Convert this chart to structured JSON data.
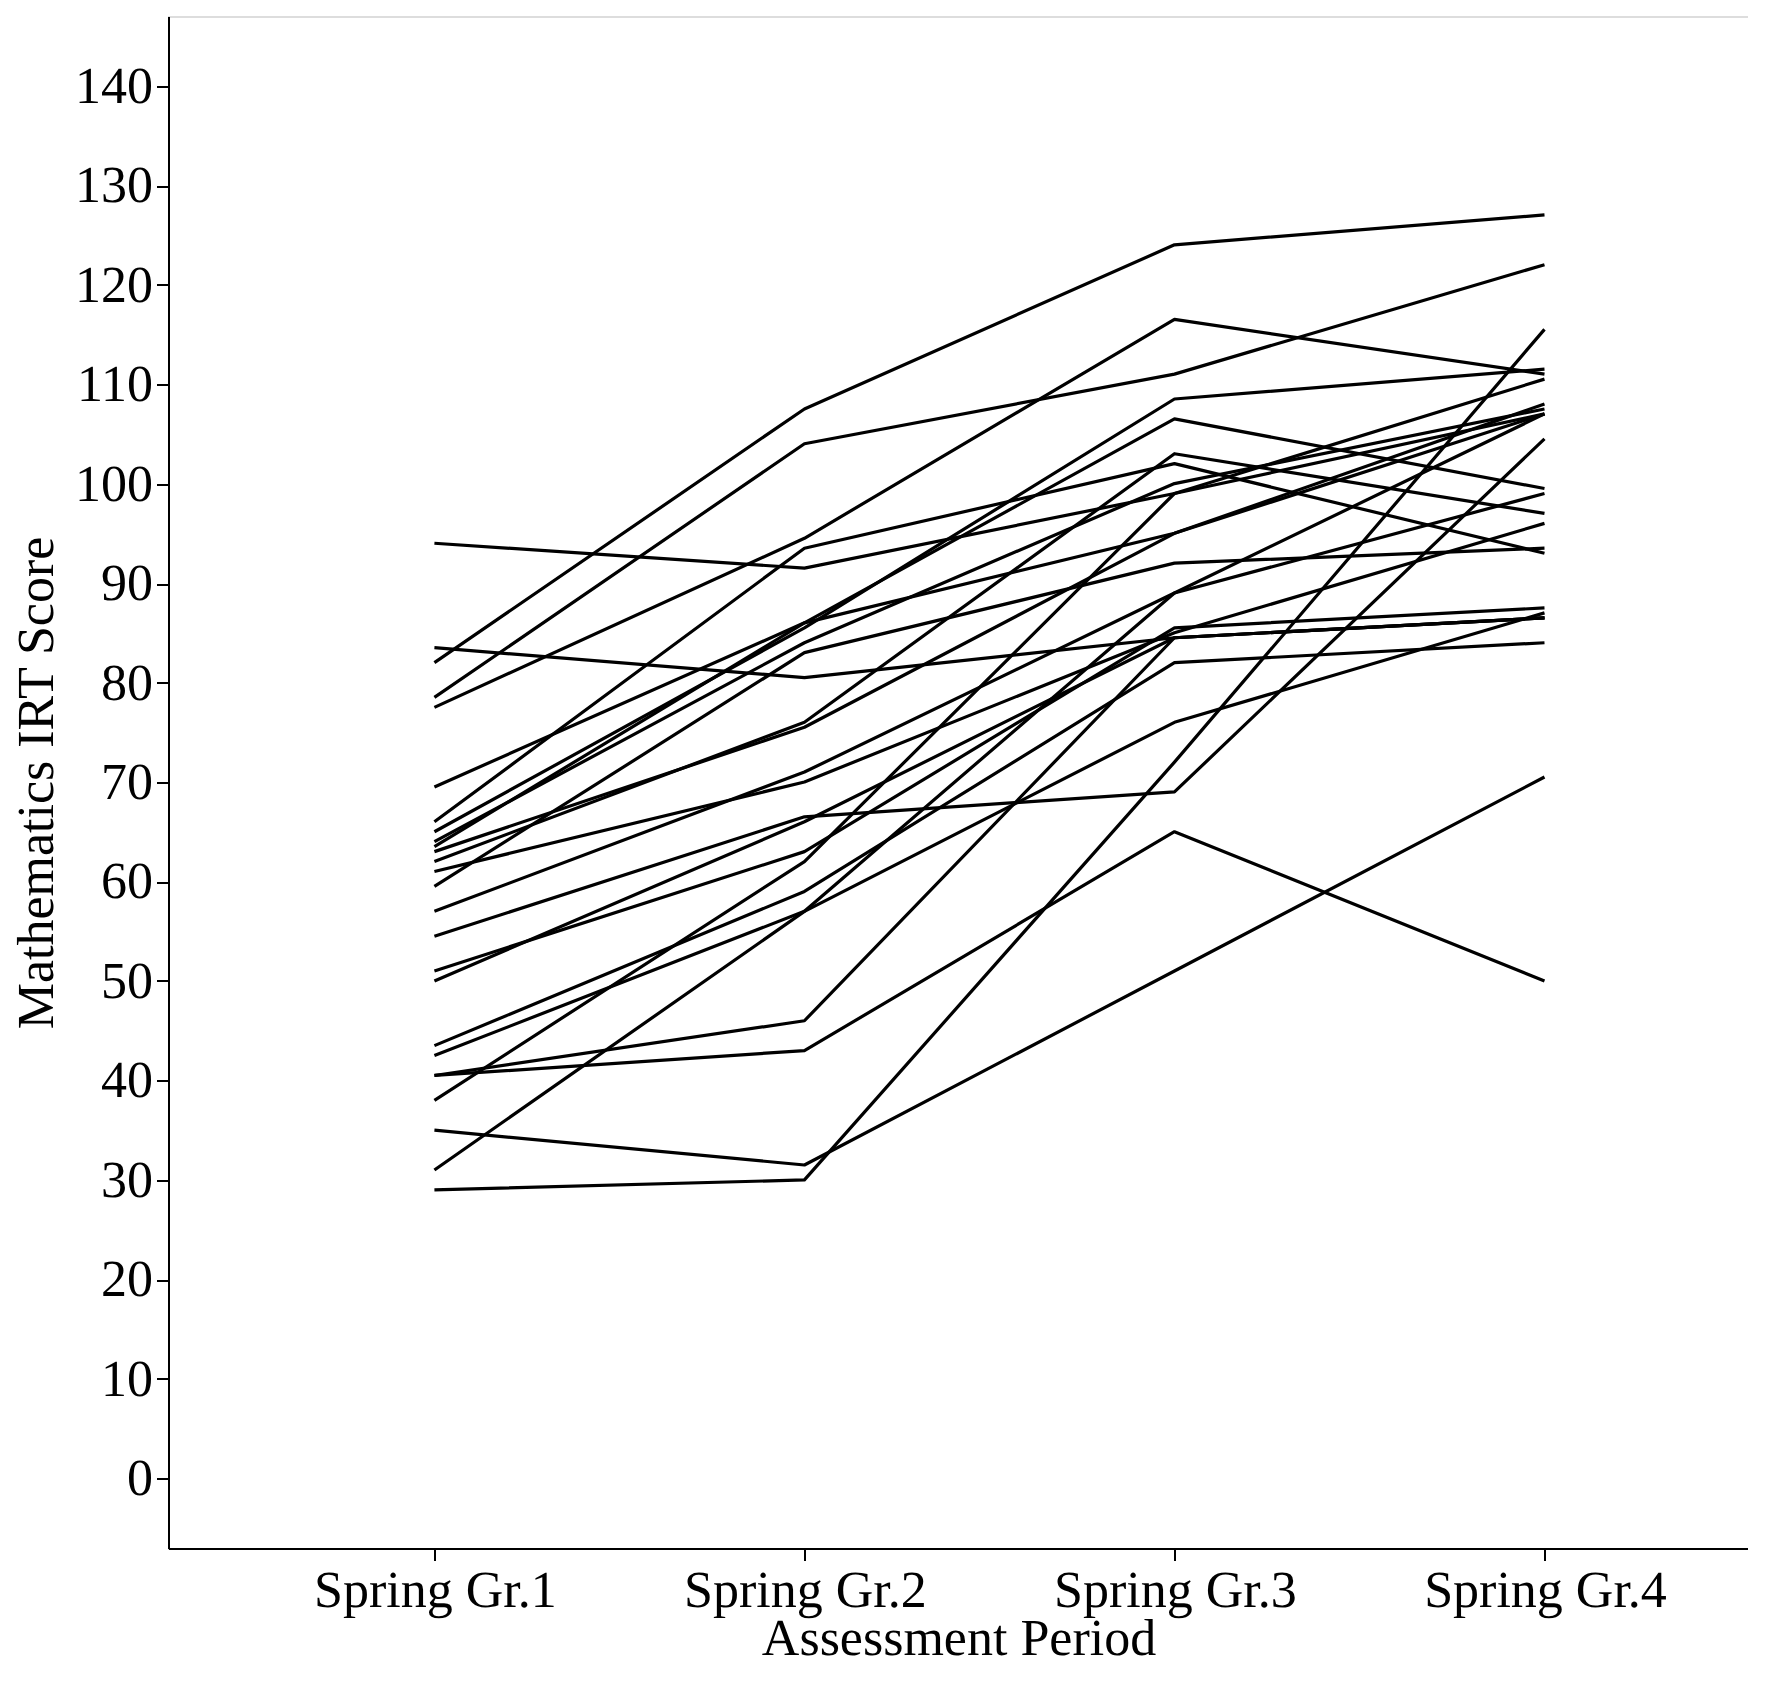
{
  "chart_data": {
    "type": "line",
    "xlabel": "Assessment Period",
    "ylabel": "Mathematics IRT Score",
    "categories": [
      "Spring Gr.1",
      "Spring Gr.2",
      "Spring Gr.3",
      "Spring Gr.4"
    ],
    "ylim": [
      -7,
      147
    ],
    "yticks": [
      0,
      10,
      20,
      30,
      40,
      50,
      60,
      70,
      80,
      90,
      100,
      110,
      120,
      130,
      140
    ],
    "grid": false,
    "legend": false,
    "marker": "none",
    "line_style": "solid",
    "series": [
      {
        "color": "#000000",
        "values": [
          82,
          107.5,
          124,
          127
        ]
      },
      {
        "color": "#000000",
        "values": [
          78.5,
          104,
          111,
          122
        ]
      },
      {
        "color": "#000000",
        "values": [
          94,
          91.5,
          99,
          107
        ]
      },
      {
        "color": "#000000",
        "values": [
          83.5,
          80.5,
          84.5,
          86.5
        ]
      },
      {
        "color": "#000000",
        "values": [
          77.5,
          94.5,
          116.5,
          111
        ]
      },
      {
        "color": "#000000",
        "values": [
          69.5,
          86,
          106.5,
          99.5
        ]
      },
      {
        "color": "#000000",
        "values": [
          66,
          93.5,
          102,
          93
        ]
      },
      {
        "color": "#000000",
        "values": [
          65,
          85.5,
          108.5,
          111.5
        ]
      },
      {
        "color": "#000000",
        "values": [
          64,
          84,
          100,
          107.5
        ]
      },
      {
        "color": "#000000",
        "values": [
          63.5,
          86,
          95,
          107
        ]
      },
      {
        "color": "#000000",
        "values": [
          63,
          75.5,
          95,
          108
        ]
      },
      {
        "color": "#000000",
        "values": [
          62,
          76,
          103,
          97
        ]
      },
      {
        "color": "#000000",
        "values": [
          61,
          70,
          85,
          96
        ]
      },
      {
        "color": "#000000",
        "values": [
          59.5,
          83,
          92,
          93.5
        ]
      },
      {
        "color": "#000000",
        "values": [
          57,
          71,
          89,
          99
        ]
      },
      {
        "color": "#000000",
        "values": [
          54.5,
          66.5,
          69,
          104.5
        ]
      },
      {
        "color": "#000000",
        "values": [
          51,
          63,
          85.5,
          87.5
        ]
      },
      {
        "color": "#000000",
        "values": [
          50,
          66,
          84.5,
          86.5
        ]
      },
      {
        "color": "#000000",
        "values": [
          43.5,
          59,
          82,
          84
        ]
      },
      {
        "color": "#000000",
        "values": [
          42.5,
          57,
          76,
          87
        ]
      },
      {
        "color": "#000000",
        "values": [
          40.5,
          46,
          84.5,
          86.5
        ]
      },
      {
        "color": "#000000",
        "values": [
          40.5,
          43,
          65,
          50
        ]
      },
      {
        "color": "#000000",
        "values": [
          38,
          62,
          99,
          110.5
        ]
      },
      {
        "color": "#000000",
        "values": [
          35,
          31.5,
          51,
          70.5
        ]
      },
      {
        "color": "#000000",
        "values": [
          31,
          57,
          89,
          107
        ]
      },
      {
        "color": "#000000",
        "values": [
          29,
          30,
          72,
          115.5
        ]
      }
    ]
  }
}
